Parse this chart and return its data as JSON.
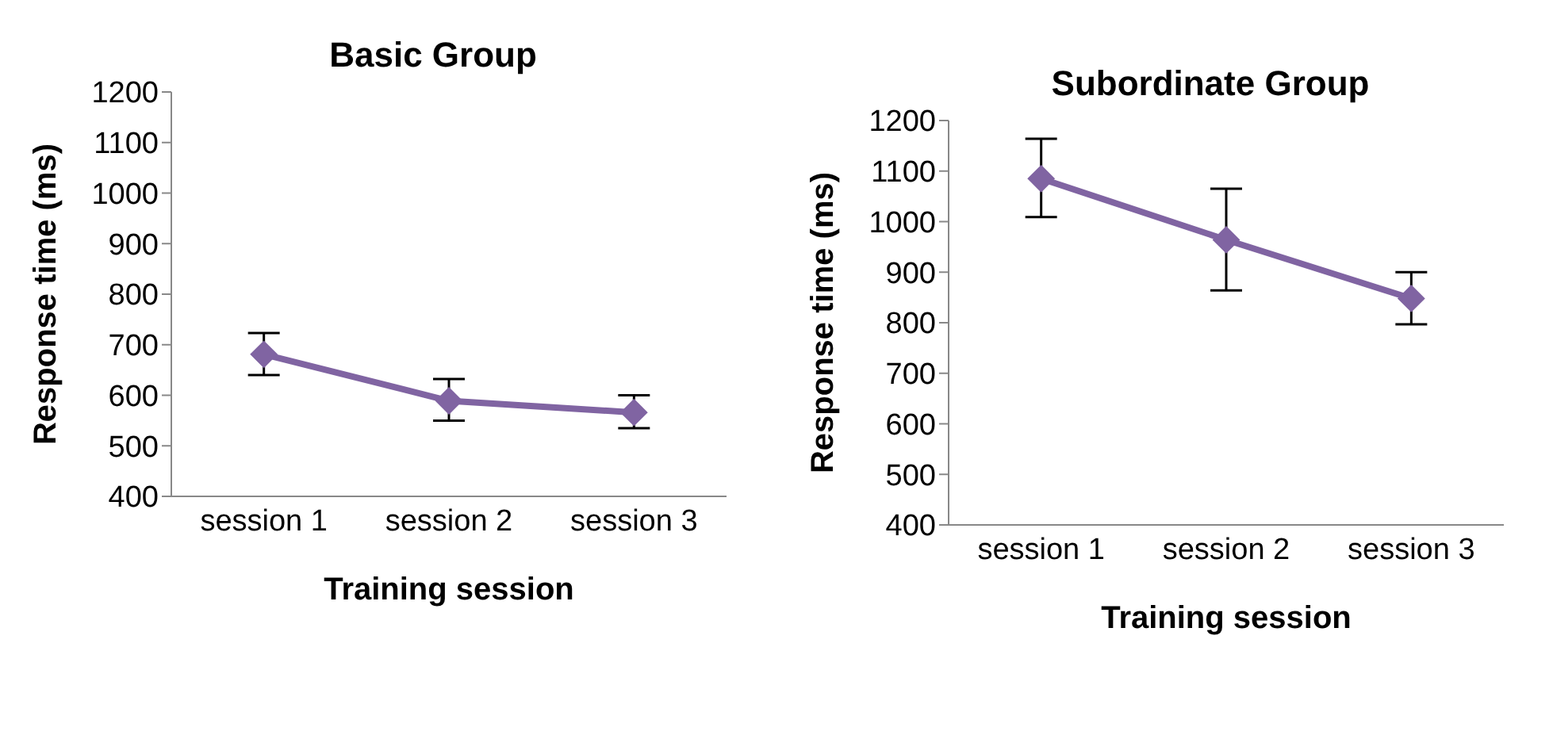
{
  "chart_data": [
    {
      "type": "line",
      "title": "Basic Group",
      "xlabel": "Training session",
      "ylabel": "Response time (ms)",
      "categories": [
        "session 1",
        "session 2",
        "session 3"
      ],
      "series": [
        {
          "color": "#8064a2",
          "values": [
            681,
            589,
            566
          ],
          "errors": [
            [
              640,
              723
            ],
            [
              550,
              632
            ],
            [
              535,
              600
            ]
          ]
        }
      ],
      "ylim": [
        400,
        1200
      ],
      "yticks": [
        400,
        500,
        600,
        700,
        800,
        900,
        1000,
        1100,
        1200
      ],
      "marker": "diamond",
      "line_style": "solid"
    },
    {
      "type": "line",
      "title": "Subordinate Group",
      "xlabel": "Training session",
      "ylabel": "Response time (ms)",
      "categories": [
        "session 1",
        "session 2",
        "session 3"
      ],
      "series": [
        {
          "color": "#8064a2",
          "values": [
            1085,
            964,
            848
          ],
          "errors": [
            [
              1009,
              1164
            ],
            [
              864,
              1065
            ],
            [
              797,
              900
            ]
          ]
        }
      ],
      "ylim": [
        400,
        1200
      ],
      "yticks": [
        400,
        500,
        600,
        700,
        800,
        900,
        1000,
        1100,
        1200
      ],
      "marker": "diamond",
      "line_style": "solid"
    }
  ]
}
